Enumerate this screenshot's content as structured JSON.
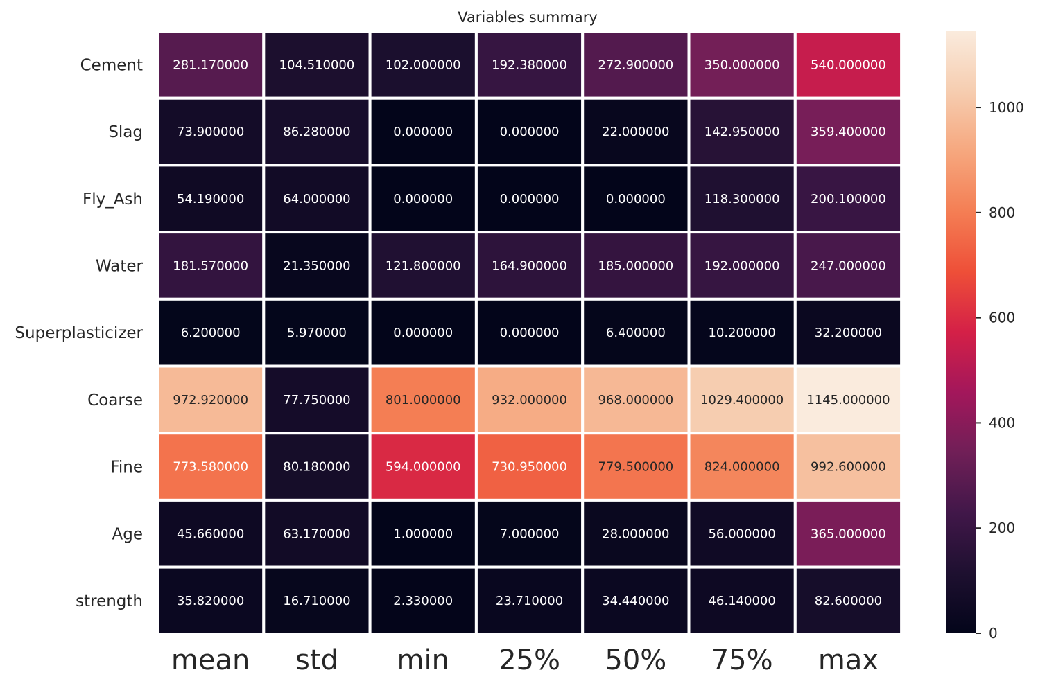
{
  "chart_data": {
    "type": "heatmap",
    "title": "Variables summary",
    "xlabel": "",
    "ylabel": "",
    "columns": [
      "mean",
      "std",
      "min",
      "25%",
      "50%",
      "75%",
      "max"
    ],
    "rows": [
      "Cement",
      "Slag",
      "Fly_Ash",
      "Water",
      "Superplasticizer",
      "Coarse",
      "Fine",
      "Age",
      "strength"
    ],
    "values": [
      [
        281.17,
        104.51,
        102.0,
        192.38,
        272.9,
        350.0,
        540.0
      ],
      [
        73.9,
        86.28,
        0.0,
        0.0,
        22.0,
        142.95,
        359.4
      ],
      [
        54.19,
        64.0,
        0.0,
        0.0,
        0.0,
        118.3,
        200.1
      ],
      [
        181.57,
        21.35,
        121.8,
        164.9,
        185.0,
        192.0,
        247.0
      ],
      [
        6.2,
        5.97,
        0.0,
        0.0,
        6.4,
        10.2,
        32.2
      ],
      [
        972.92,
        77.75,
        801.0,
        932.0,
        968.0,
        1029.4,
        1145.0
      ],
      [
        773.58,
        80.18,
        594.0,
        730.95,
        779.5,
        824.0,
        992.6
      ],
      [
        45.66,
        63.17,
        1.0,
        7.0,
        28.0,
        56.0,
        365.0
      ],
      [
        35.82,
        16.71,
        2.33,
        23.71,
        34.44,
        46.14,
        82.6
      ]
    ],
    "annotations": [
      [
        "281.170000",
        "104.510000",
        "102.000000",
        "192.380000",
        "272.900000",
        "350.000000",
        "540.000000"
      ],
      [
        "73.900000",
        "86.280000",
        "0.000000",
        "0.000000",
        "22.000000",
        "142.950000",
        "359.400000"
      ],
      [
        "54.190000",
        "64.000000",
        "0.000000",
        "0.000000",
        "0.000000",
        "118.300000",
        "200.100000"
      ],
      [
        "181.570000",
        "21.350000",
        "121.800000",
        "164.900000",
        "185.000000",
        "192.000000",
        "247.000000"
      ],
      [
        "6.200000",
        "5.970000",
        "0.000000",
        "0.000000",
        "6.400000",
        "10.200000",
        "32.200000"
      ],
      [
        "972.920000",
        "77.750000",
        "801.000000",
        "932.000000",
        "968.000000",
        "1029.400000",
        "1145.000000"
      ],
      [
        "773.580000",
        "80.180000",
        "594.000000",
        "730.950000",
        "779.500000",
        "824.000000",
        "992.600000"
      ],
      [
        "45.660000",
        "63.170000",
        "1.000000",
        "7.000000",
        "28.000000",
        "56.000000",
        "365.000000"
      ],
      [
        "35.820000",
        "16.710000",
        "2.330000",
        "23.710000",
        "34.440000",
        "46.140000",
        "82.600000"
      ]
    ],
    "colormap": "rocket",
    "vmin": 0,
    "vmax": 1145,
    "colorbar_ticks": [
      0,
      200,
      400,
      600,
      800,
      1000
    ],
    "colorbar_tick_labels": [
      "0",
      "200",
      "400",
      "600",
      "800",
      "1000"
    ],
    "grid": false,
    "colorbar_position": "right",
    "cell_border_color": "#ffffff",
    "text_color": "#262626"
  }
}
